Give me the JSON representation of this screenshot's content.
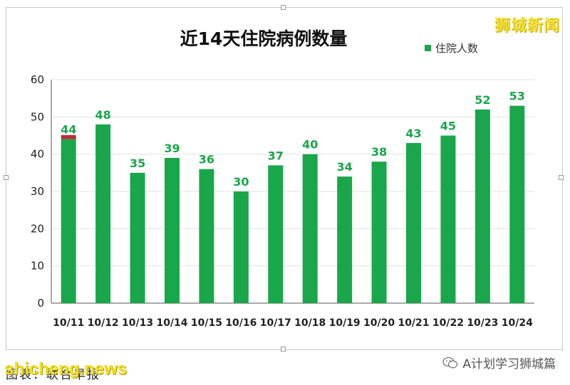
{
  "watermark_top": "狮城新闻",
  "footer": {
    "note": "图表：联合早报",
    "brand": "shicheng.news",
    "wechat": "A计划学习狮城篇"
  },
  "colors": {
    "bar": "#1aa64a",
    "label": "#1aa64a",
    "accent_overlay": "#b5303a"
  },
  "chart_data": {
    "type": "bar",
    "title": "近14天住院病例数量",
    "legend": [
      "住院人数"
    ],
    "legend_position": "top-right",
    "categories": [
      "10/11",
      "10/12",
      "10/13",
      "10/14",
      "10/15",
      "10/16",
      "10/17",
      "10/18",
      "10/19",
      "10/20",
      "10/21",
      "10/22",
      "10/23",
      "10/24"
    ],
    "series": [
      {
        "name": "住院人数",
        "values": [
          44,
          48,
          35,
          39,
          36,
          30,
          37,
          40,
          34,
          38,
          43,
          45,
          52,
          53
        ]
      }
    ],
    "ylim": [
      0,
      60
    ],
    "yticks": [
      0,
      10,
      20,
      30,
      40,
      50,
      60
    ],
    "grid": true,
    "xlabel": "",
    "ylabel": ""
  }
}
